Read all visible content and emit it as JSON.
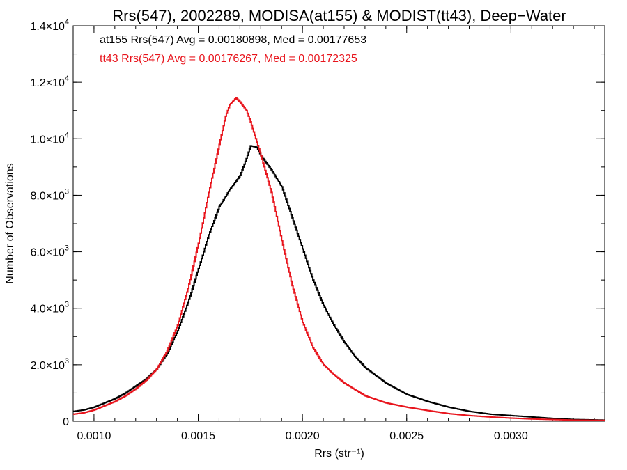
{
  "chart_data": {
    "type": "line",
    "title": "Rrs(547), 2002289, MODISA(at155) & MODIST(tt43), Deep−Water",
    "xlabel": "Rrs (str⁻¹)",
    "ylabel": "Number of Observations",
    "xlim": [
      0.0009,
      0.00345
    ],
    "ylim": [
      0,
      14000
    ],
    "x_ticks": [
      {
        "value": 0.001,
        "label": "0.0010"
      },
      {
        "value": 0.0015,
        "label": "0.0015"
      },
      {
        "value": 0.002,
        "label": "0.0020"
      },
      {
        "value": 0.0025,
        "label": "0.0025"
      },
      {
        "value": 0.003,
        "label": "0.0030"
      }
    ],
    "y_ticks": [
      {
        "value": 0,
        "mantissa": "0",
        "exponent": ""
      },
      {
        "value": 2000,
        "mantissa": "2.0×10",
        "exponent": "3"
      },
      {
        "value": 4000,
        "mantissa": "4.0×10",
        "exponent": "3"
      },
      {
        "value": 6000,
        "mantissa": "6.0×10",
        "exponent": "3"
      },
      {
        "value": 8000,
        "mantissa": "8.0×10",
        "exponent": "3"
      },
      {
        "value": 10000,
        "mantissa": "1.0×10",
        "exponent": "4"
      },
      {
        "value": 12000,
        "mantissa": "1.2×10",
        "exponent": "4"
      },
      {
        "value": 14000,
        "mantissa": "1.4×10",
        "exponent": "4"
      }
    ],
    "grid": false,
    "legend_position": "top-left",
    "annotations": [
      {
        "text": "at155 Rrs(547) Avg = 0.00180898, Med = 0.00177653",
        "color": "#000000"
      },
      {
        "text": "tt43 Rrs(547) Avg = 0.00176267, Med = 0.00172325",
        "color": "#e8141c"
      }
    ],
    "series": [
      {
        "color": "#000000",
        "x": [
          0.0009,
          0.00095,
          0.001,
          0.00105,
          0.0011,
          0.00115,
          0.0012,
          0.00125,
          0.0013,
          0.00135,
          0.0014,
          0.00145,
          0.0015,
          0.00155,
          0.0016,
          0.00165,
          0.0017,
          0.00173,
          0.00175,
          0.00178,
          0.0018,
          0.00185,
          0.0019,
          0.00195,
          0.002,
          0.00205,
          0.0021,
          0.00215,
          0.0022,
          0.00225,
          0.0023,
          0.0024,
          0.0025,
          0.0026,
          0.0027,
          0.0028,
          0.0029,
          0.003,
          0.0031,
          0.0032,
          0.0033,
          0.00345
        ],
        "values": [
          350,
          400,
          500,
          650,
          800,
          1000,
          1250,
          1500,
          1850,
          2400,
          3200,
          4200,
          5400,
          6600,
          7600,
          8200,
          8700,
          9300,
          9750,
          9700,
          9400,
          8900,
          8300,
          7200,
          6100,
          5000,
          4100,
          3400,
          2800,
          2300,
          1900,
          1350,
          950,
          700,
          500,
          350,
          250,
          200,
          150,
          100,
          60,
          40
        ]
      },
      {
        "color": "#e8141c",
        "x": [
          0.0009,
          0.00095,
          0.001,
          0.00105,
          0.0011,
          0.00115,
          0.0012,
          0.00125,
          0.0013,
          0.00135,
          0.0014,
          0.00145,
          0.0015,
          0.00155,
          0.0016,
          0.00163,
          0.00165,
          0.00168,
          0.0017,
          0.00173,
          0.00175,
          0.0018,
          0.00185,
          0.0019,
          0.00195,
          0.002,
          0.00205,
          0.0021,
          0.00215,
          0.0022,
          0.0023,
          0.0024,
          0.0025,
          0.0026,
          0.0027,
          0.0028,
          0.0029,
          0.003,
          0.0031,
          0.0032,
          0.0033,
          0.00345
        ],
        "values": [
          250,
          300,
          400,
          550,
          700,
          900,
          1150,
          1450,
          1850,
          2500,
          3400,
          4700,
          6300,
          8100,
          9800,
          10800,
          11200,
          11450,
          11300,
          11000,
          10600,
          9400,
          8100,
          6400,
          4800,
          3500,
          2600,
          2000,
          1650,
          1350,
          900,
          650,
          500,
          380,
          270,
          200,
          150,
          110,
          80,
          60,
          40,
          30
        ]
      }
    ]
  }
}
